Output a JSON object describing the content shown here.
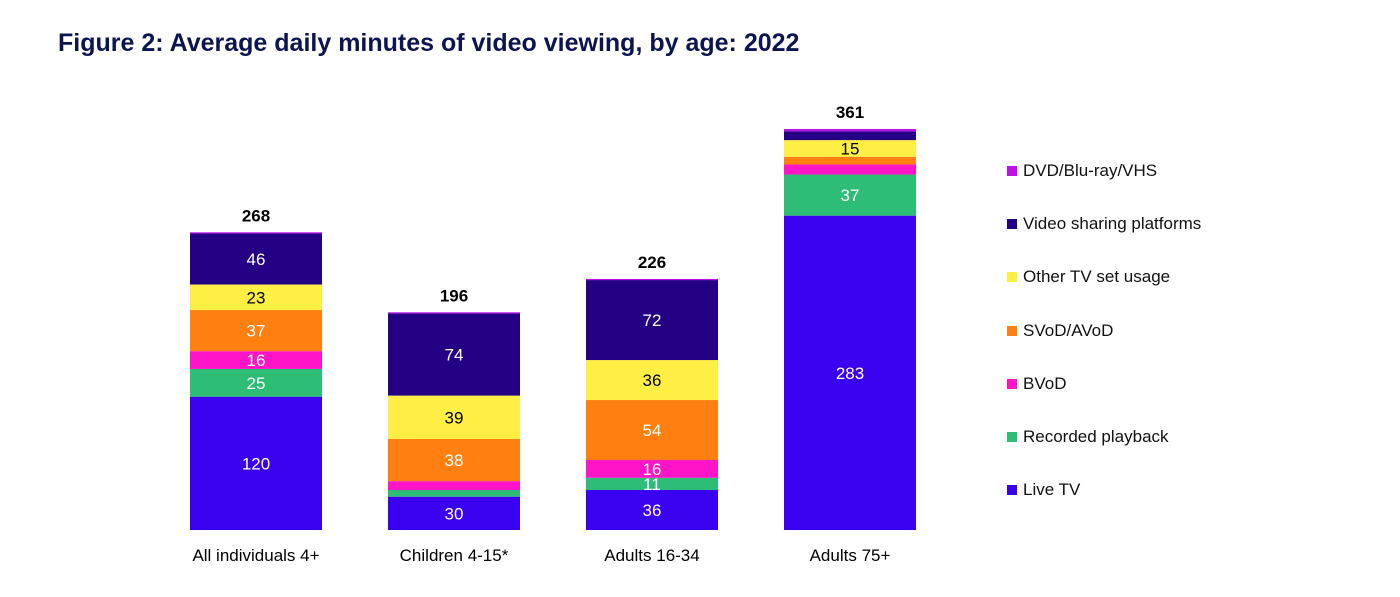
{
  "chart_data": {
    "type": "bar",
    "stacked": true,
    "title": "Figure 2: Average daily minutes of video viewing, by age: 2022",
    "xlabel": "",
    "ylabel": "",
    "ylim": [
      0,
      361
    ],
    "grid": false,
    "legend_position": "right",
    "categories": [
      "All individuals 4+",
      "Children 4-15*",
      "Adults 16-34",
      "Adults 75+"
    ],
    "totals": [
      268,
      196,
      226,
      361
    ],
    "series": [
      {
        "name": "Live TV",
        "color": "#3a00f0",
        "values": [
          120,
          30,
          36,
          283
        ],
        "labeled": [
          true,
          true,
          true,
          true
        ],
        "label_color": "#ffffff"
      },
      {
        "name": "Recorded playback",
        "color": "#2ebd76",
        "values": [
          25,
          6,
          11,
          37
        ],
        "labeled": [
          true,
          false,
          true,
          true
        ],
        "label_color": "#ffffff"
      },
      {
        "name": "BVoD",
        "color": "#ff14c8",
        "values": [
          16,
          8,
          16,
          9
        ],
        "labeled": [
          true,
          false,
          true,
          false
        ],
        "label_color": "#ffffff"
      },
      {
        "name": "SVoD/AVoD",
        "color": "#ff7f10",
        "values": [
          37,
          38,
          54,
          7
        ],
        "labeled": [
          true,
          true,
          true,
          false
        ],
        "label_color": "#ffffff"
      },
      {
        "name": "Other TV set usage",
        "color": "#ffee44",
        "values": [
          23,
          39,
          36,
          15
        ],
        "labeled": [
          true,
          true,
          true,
          true
        ],
        "label_color": "#000000"
      },
      {
        "name": "Video sharing platforms",
        "color": "#240085",
        "values": [
          46,
          74,
          72,
          8
        ],
        "labeled": [
          true,
          true,
          true,
          false
        ],
        "label_color": "#ffffff"
      },
      {
        "name": "DVD/Blu-ray/VHS",
        "color": "#c010e8",
        "values": [
          1,
          1,
          1,
          2
        ],
        "labeled": [
          false,
          false,
          false,
          false
        ],
        "label_color": "#ffffff"
      }
    ]
  }
}
